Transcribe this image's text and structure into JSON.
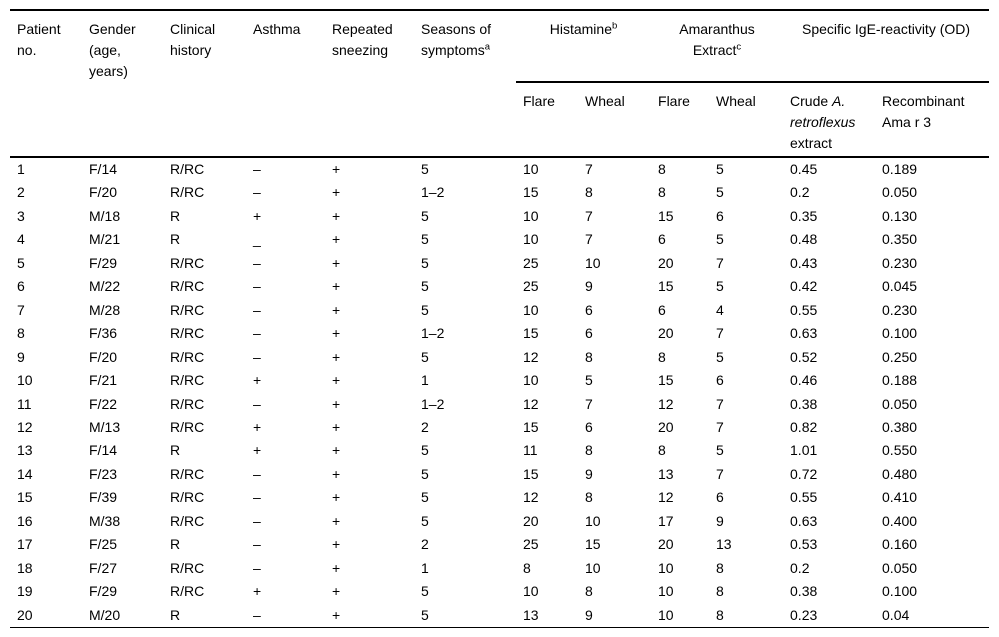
{
  "table": {
    "columns": [
      {
        "label": "Patient no."
      },
      {
        "label": "Gender (age, years)"
      },
      {
        "label": "Clinical history"
      },
      {
        "label": "Asthma"
      },
      {
        "label": "Repeated sneezing"
      },
      {
        "label": "Seasons of symptoms",
        "sup": "a"
      }
    ],
    "groups": [
      {
        "label": "Histamine",
        "sup": "b"
      },
      {
        "label": "Amaranthus Extract",
        "sup": "c"
      },
      {
        "label": "Specific IgE-reactivity (OD)",
        "sup": ""
      }
    ],
    "subcolumns": {
      "histamine_flare": "Flare",
      "histamine_wheal": "Wheal",
      "amaranthus_flare": "Flare",
      "amaranthus_wheal": "Wheal",
      "crude": {
        "pre": "Crude",
        "italic": "A. retroflexus",
        "post": "extract"
      },
      "recombinant": "Recombinant Ama r 3"
    },
    "rows": [
      [
        "1",
        "F/14",
        "R/RC",
        "–",
        "+",
        "5",
        "10",
        "7",
        "8",
        "5",
        "0.45",
        "0.189"
      ],
      [
        "2",
        "F/20",
        "R/RC",
        "–",
        "+",
        "1–2",
        "15",
        "8",
        "8",
        "5",
        "0.2",
        "0.050"
      ],
      [
        "3",
        "M/18",
        "R",
        "+",
        "+",
        "5",
        "10",
        "7",
        "15",
        "6",
        "0.35",
        "0.130"
      ],
      [
        "4",
        "M/21",
        "R",
        "_",
        "+",
        "5",
        "10",
        "7",
        "6",
        "5",
        "0.48",
        "0.350"
      ],
      [
        "5",
        "F/29",
        "R/RC",
        "–",
        "+",
        "5",
        "25",
        "10",
        "20",
        "7",
        "0.43",
        "0.230"
      ],
      [
        "6",
        "M/22",
        "R/RC",
        "–",
        "+",
        "5",
        "25",
        "9",
        "15",
        "5",
        "0.42",
        "0.045"
      ],
      [
        "7",
        "M/28",
        "R/RC",
        "–",
        "+",
        "5",
        "10",
        "6",
        "6",
        "4",
        "0.55",
        "0.230"
      ],
      [
        "8",
        "F/36",
        "R/RC",
        "–",
        "+",
        "1–2",
        "15",
        "6",
        "20",
        "7",
        "0.63",
        "0.100"
      ],
      [
        "9",
        "F/20",
        "R/RC",
        "–",
        "+",
        "5",
        "12",
        "8",
        "8",
        "5",
        "0.52",
        "0.250"
      ],
      [
        "10",
        "F/21",
        "R/RC",
        "+",
        "+",
        "1",
        "10",
        "5",
        "15",
        "6",
        "0.46",
        "0.188"
      ],
      [
        "11",
        "F/22",
        "R/RC",
        "–",
        "+",
        "1–2",
        "12",
        "7",
        "12",
        "7",
        "0.38",
        "0.050"
      ],
      [
        "12",
        "M/13",
        "R/RC",
        "+",
        "+",
        "2",
        "15",
        "6",
        "20",
        "7",
        "0.82",
        "0.380"
      ],
      [
        "13",
        "F/14",
        "R",
        "+",
        "+",
        "5",
        "11",
        "8",
        "8",
        "5",
        "1.01",
        "0.550"
      ],
      [
        "14",
        "F/23",
        "R/RC",
        "–",
        "+",
        "5",
        "15",
        "9",
        "13",
        "7",
        "0.72",
        "0.480"
      ],
      [
        "15",
        "F/39",
        "R/RC",
        "–",
        "+",
        "5",
        "12",
        "8",
        "12",
        "6",
        "0.55",
        "0.410"
      ],
      [
        "16",
        "M/38",
        "R/RC",
        "–",
        "+",
        "5",
        "20",
        "10",
        "17",
        "9",
        "0.63",
        "0.400"
      ],
      [
        "17",
        "F/25",
        "R",
        "–",
        "+",
        "2",
        "25",
        "15",
        "20",
        "13",
        "0.53",
        "0.160"
      ],
      [
        "18",
        "F/27",
        "R/RC",
        "–",
        "+",
        "1",
        "8",
        "10",
        "10",
        "8",
        "0.2",
        "0.050"
      ],
      [
        "19",
        "F/29",
        "R/RC",
        "+",
        "+",
        "5",
        "10",
        "8",
        "10",
        "8",
        "0.38",
        "0.100"
      ],
      [
        "20",
        "M/20",
        "R",
        "–",
        "+",
        "5",
        "13",
        "9",
        "10",
        "8",
        "0.23",
        "0.04"
      ]
    ]
  }
}
